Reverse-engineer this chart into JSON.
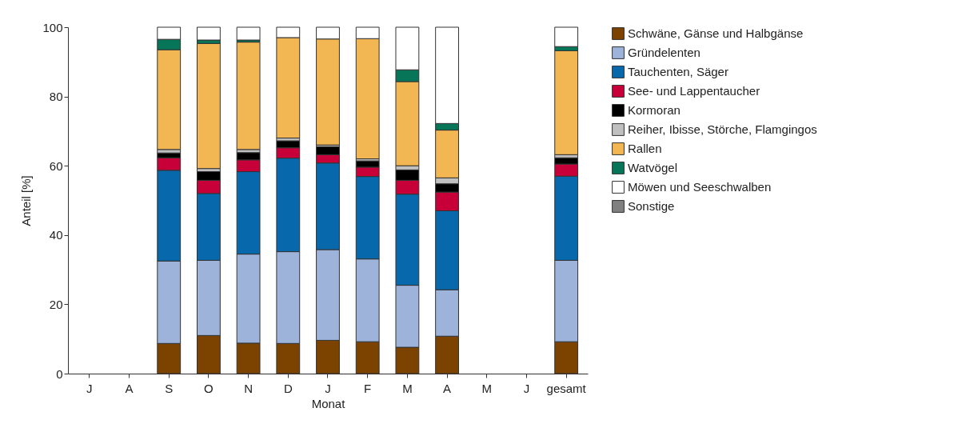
{
  "chart_data": {
    "type": "bar",
    "stacked": true,
    "xlabel": "Monat",
    "ylabel": "Anteil [%]",
    "categories": [
      "J",
      "A",
      "S",
      "O",
      "N",
      "D",
      "J",
      "F",
      "M",
      "A",
      "M",
      "J",
      "gesamt"
    ],
    "ylim": [
      0,
      100
    ],
    "yticks": [
      0,
      20,
      40,
      60,
      80,
      100
    ],
    "grid": false,
    "legend": "right",
    "series": [
      {
        "name": "Schwäne, Gänse und Halbgänse",
        "color": "#7b4200",
        "values": [
          null,
          null,
          8.7,
          11.0,
          8.8,
          8.7,
          9.6,
          9.2,
          7.6,
          10.8,
          null,
          null,
          9.2
        ]
      },
      {
        "name": "Gründelenten",
        "color": "#9db3da",
        "values": [
          null,
          null,
          23.8,
          21.7,
          25.7,
          26.5,
          26.2,
          23.9,
          17.9,
          13.4,
          null,
          null,
          23.5
        ]
      },
      {
        "name": "Tauchenten, Säger",
        "color": "#0868ac",
        "values": [
          null,
          null,
          26.2,
          19.3,
          23.8,
          27.0,
          25.0,
          23.8,
          26.3,
          22.8,
          null,
          null,
          24.3
        ]
      },
      {
        "name": "See- und Lappentaucher",
        "color": "#c8003a",
        "values": [
          null,
          null,
          3.6,
          3.8,
          3.4,
          3.0,
          2.4,
          2.7,
          4.0,
          5.4,
          null,
          null,
          3.5
        ]
      },
      {
        "name": "Kormoran",
        "color": "#000000",
        "values": [
          null,
          null,
          1.4,
          2.5,
          2.1,
          2.0,
          2.3,
          1.8,
          3.0,
          2.4,
          null,
          null,
          1.8
        ]
      },
      {
        "name": "Reiher, Ibisse, Störche, Flamgingos",
        "color": "#c0c0c0",
        "values": [
          null,
          null,
          1.0,
          0.9,
          0.9,
          0.8,
          0.5,
          0.6,
          1.2,
          1.7,
          null,
          null,
          0.9
        ]
      },
      {
        "name": "Rallen",
        "color": "#f2b752",
        "values": [
          null,
          null,
          28.8,
          36.1,
          31.0,
          29.0,
          30.6,
          34.7,
          24.3,
          13.8,
          null,
          null,
          30.0
        ]
      },
      {
        "name": "Watvögel",
        "color": "#077558",
        "values": [
          null,
          null,
          3.0,
          1.0,
          0.6,
          null,
          null,
          null,
          3.4,
          1.9,
          null,
          null,
          1.2
        ]
      },
      {
        "name": "Möwen und Seeschwalben",
        "color": "#ffffff",
        "values": [
          null,
          null,
          3.5,
          3.7,
          3.7,
          3.0,
          3.4,
          3.3,
          12.3,
          27.8,
          null,
          null,
          5.6
        ]
      },
      {
        "name": "Sonstige",
        "color": "#808080",
        "values": [
          null,
          null,
          null,
          null,
          null,
          null,
          null,
          null,
          null,
          null,
          null,
          null,
          null
        ]
      }
    ]
  }
}
